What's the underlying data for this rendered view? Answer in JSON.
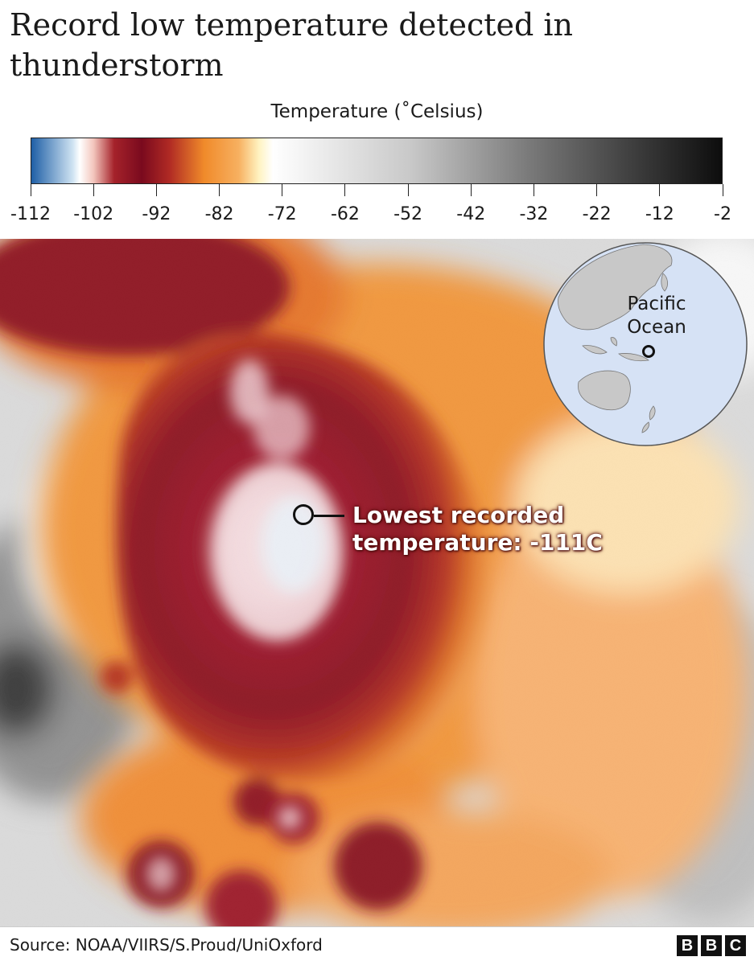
{
  "title": "Record low temperature detected in thunderstorm",
  "legend": {
    "title": "Temperature (˚Celsius)",
    "ticks": [
      "-112",
      "-102",
      "-92",
      "-82",
      "-72",
      "-62",
      "-52",
      "-42",
      "-32",
      "-22",
      "-12",
      "-2"
    ],
    "min": -112,
    "max": -2,
    "colors": {
      "coldest": "#1f5fa6",
      "light_blue": "#cfe3f2",
      "dark_red": "#7a0a1e",
      "crimson": "#a5222a",
      "orange": "#f08a2a",
      "pale_yellow": "#fff3c2",
      "white": "#ffffff",
      "black": "#0d0d0d"
    }
  },
  "annotation": {
    "line1": "Lowest recorded",
    "line2": "temperature: -111C"
  },
  "locator": {
    "label_line1": "Pacific",
    "label_line2": "Ocean",
    "ocean_color": "#d6e2f5",
    "land_color": "#c8c8c8"
  },
  "source": "Source: NOAA/VIIRS/S.Proud/UniOxford",
  "logo": [
    "B",
    "B",
    "C"
  ]
}
